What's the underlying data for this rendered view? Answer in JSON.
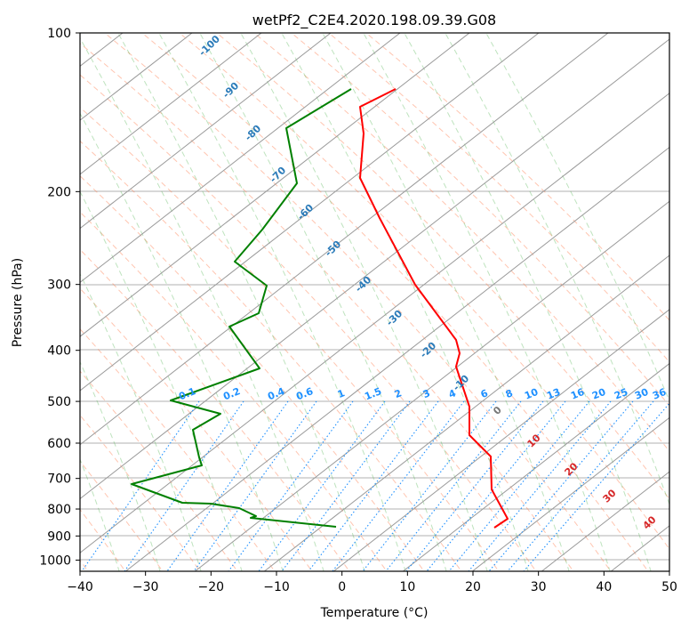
{
  "chart_data": {
    "type": "line",
    "title": "wetPf2_C2E4.2020.198.09.39.G08",
    "xlabel": "Temperature (°C)",
    "ylabel": "Pressure (hPa)",
    "xlim": [
      -40,
      50
    ],
    "ylim": [
      1050,
      100
    ],
    "y_scale": "log",
    "grid": true,
    "x_ticks": [
      "−40",
      "−30",
      "−20",
      "−10",
      "0",
      "10",
      "20",
      "30",
      "40",
      "50"
    ],
    "y_ticks": [
      "100",
      "200",
      "300",
      "400",
      "500",
      "600",
      "700",
      "800",
      "900",
      "1000"
    ],
    "isotherm_labels": [
      "-100",
      "-90",
      "-80",
      "-70",
      "-60",
      "-50",
      "-40",
      "-30",
      "-20",
      "-10",
      "0",
      "10",
      "20",
      "30",
      "40"
    ],
    "mixing_ratio_labels": [
      "0.1",
      "0.2",
      "0.4",
      "0.6",
      "1",
      "1.5",
      "2",
      "3",
      "4",
      "6",
      "8",
      "10",
      "13",
      "16",
      "20",
      "25",
      "30",
      "36"
    ],
    "series": [
      {
        "color": "#ff0000",
        "points": [
          [
            445,
            100
          ],
          [
            405,
            120
          ],
          [
            409,
            150
          ],
          [
            405,
            200
          ],
          [
            427,
            245
          ],
          [
            467,
            320
          ],
          [
            513,
            382
          ],
          [
            517,
            397
          ],
          [
            513,
            412
          ],
          [
            528,
            457
          ],
          [
            528,
            489
          ],
          [
            552,
            513
          ],
          [
            553,
            550
          ],
          [
            571,
            583
          ],
          [
            556,
            593
          ]
        ]
      },
      {
        "color": "#008000",
        "points": [
          [
            395,
            100
          ],
          [
            322,
            144
          ],
          [
            334,
            206
          ],
          [
            295,
            258
          ],
          [
            264,
            294
          ],
          [
            300,
            321
          ],
          [
            291,
            352
          ],
          [
            258,
            367
          ],
          [
            292,
            414
          ],
          [
            192,
            450
          ],
          [
            248,
            465
          ],
          [
            217,
            483
          ],
          [
            224,
            514
          ],
          [
            227,
            523
          ],
          [
            148,
            544
          ],
          [
            205,
            565
          ],
          [
            237,
            566
          ],
          [
            269,
            571
          ],
          [
            288,
            580
          ],
          [
            282,
            582
          ],
          [
            378,
            592
          ]
        ]
      }
    ]
  },
  "colors": {
    "temperature": "#ff0000",
    "dewpoint": "#008000",
    "isotherm_label": "#2b7bb9",
    "mixing_ratio": "#1e90ff",
    "dry_adiabat": "#ff7f50",
    "moist_adiabat": "#5cb85c"
  }
}
